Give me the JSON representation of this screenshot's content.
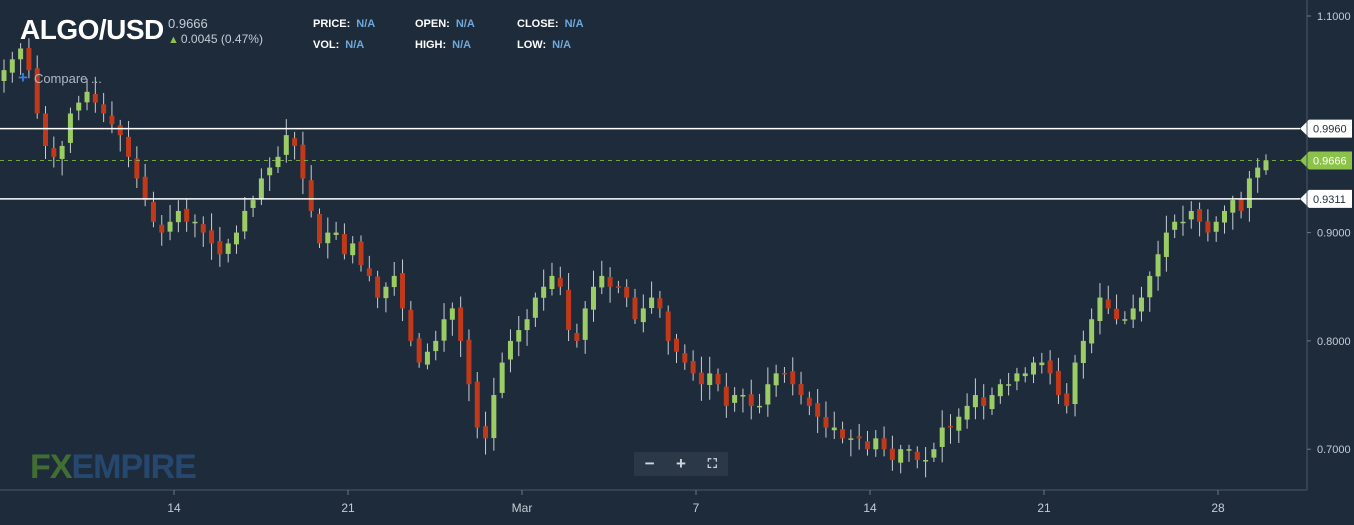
{
  "header": {
    "symbol": "ALGO/USD",
    "last_price": "0.9666",
    "change": "0.0045 (0.47%)",
    "change_icon": "arrow-up-icon",
    "stats": [
      {
        "label": "PRICE:",
        "value": "N/A"
      },
      {
        "label": "OPEN:",
        "value": "N/A"
      },
      {
        "label": "CLOSE:",
        "value": "N/A"
      },
      {
        "label": "VOL:",
        "value": "N/A"
      },
      {
        "label": "HIGH:",
        "value": "N/A"
      },
      {
        "label": "LOW:",
        "value": "N/A"
      }
    ],
    "compare_label": "Compare ..."
  },
  "logo": {
    "fx": "FX",
    "empire": "EMPIRE"
  },
  "zoom_controls": {
    "minus": "−",
    "plus": "+",
    "fullscreen": "⛶"
  },
  "colors": {
    "background": "#1e2b3a",
    "up": "#9ccc65",
    "down": "#c0391b",
    "line": "#ffffff",
    "current": "#8bc34a"
  },
  "chart_data": {
    "type": "candlestick",
    "title": "",
    "xlabel": "",
    "ylabel": "",
    "ylim": [
      0.66,
      1.1
    ],
    "y_ticks": [
      "1.1000",
      "0.9000",
      "0.8000",
      "0.7000"
    ],
    "x_ticks": [
      {
        "label": "14",
        "x": 0.125
      },
      {
        "label": "21",
        "x": 0.25
      },
      {
        "label": "Mar",
        "x": 0.375
      },
      {
        "label": "7",
        "x": 0.5
      },
      {
        "label": "14",
        "x": 0.625
      },
      {
        "label": "21",
        "x": 0.75
      },
      {
        "label": "28",
        "x": 0.875
      }
    ],
    "horizontal_lines": [
      {
        "value": 0.996,
        "label": "0.9960",
        "style": "solid"
      },
      {
        "value": 0.9311,
        "label": "0.9311",
        "style": "solid"
      },
      {
        "value": 0.9666,
        "label": "0.9666",
        "style": "dashed"
      }
    ],
    "closes": [
      1.05,
      1.06,
      1.07,
      1.05,
      1.01,
      0.98,
      0.97,
      0.98,
      1.01,
      1.02,
      1.03,
      1.02,
      1.01,
      1.0,
      0.99,
      0.97,
      0.95,
      0.93,
      0.91,
      0.9,
      0.91,
      0.92,
      0.91,
      0.91,
      0.9,
      0.89,
      0.88,
      0.89,
      0.9,
      0.92,
      0.93,
      0.95,
      0.96,
      0.97,
      0.99,
      0.98,
      0.95,
      0.92,
      0.89,
      0.9,
      0.9,
      0.88,
      0.89,
      0.87,
      0.86,
      0.84,
      0.85,
      0.86,
      0.83,
      0.8,
      0.78,
      0.79,
      0.8,
      0.82,
      0.83,
      0.8,
      0.76,
      0.72,
      0.71,
      0.75,
      0.78,
      0.8,
      0.81,
      0.82,
      0.84,
      0.85,
      0.86,
      0.85,
      0.81,
      0.8,
      0.83,
      0.85,
      0.86,
      0.85,
      0.85,
      0.84,
      0.82,
      0.83,
      0.84,
      0.83,
      0.8,
      0.79,
      0.78,
      0.77,
      0.76,
      0.77,
      0.76,
      0.74,
      0.75,
      0.75,
      0.74,
      0.74,
      0.76,
      0.77,
      0.77,
      0.76,
      0.75,
      0.74,
      0.73,
      0.72,
      0.72,
      0.71,
      0.71,
      0.71,
      0.7,
      0.71,
      0.7,
      0.69,
      0.7,
      0.7,
      0.69,
      0.69,
      0.7,
      0.72,
      0.72,
      0.73,
      0.74,
      0.75,
      0.74,
      0.75,
      0.76,
      0.76,
      0.77,
      0.77,
      0.78,
      0.78,
      0.77,
      0.75,
      0.74,
      0.78,
      0.8,
      0.82,
      0.84,
      0.83,
      0.82,
      0.82,
      0.83,
      0.84,
      0.86,
      0.88,
      0.9,
      0.91,
      0.91,
      0.92,
      0.91,
      0.9,
      0.91,
      0.92,
      0.93,
      0.92,
      0.95,
      0.96,
      0.9666
    ]
  }
}
